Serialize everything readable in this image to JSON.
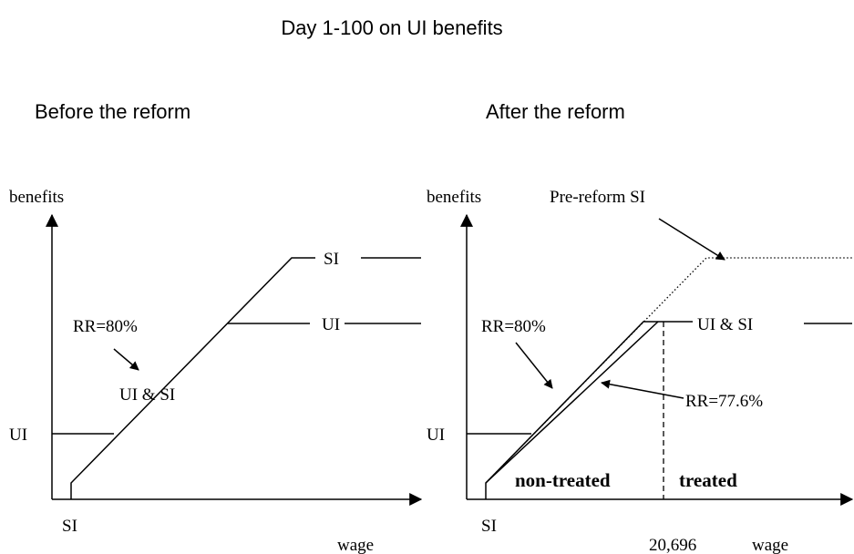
{
  "title": "Day 1-100 on UI benefits",
  "panels": [
    {
      "heading": "Before the reform",
      "y_label": "benefits",
      "x_label": "wage",
      "labels": {
        "si_top": "SI",
        "ui_top": "UI",
        "rr": "RR=80%",
        "ui_si": "UI & SI",
        "ui_axis": "UI",
        "si_axis": "SI"
      }
    },
    {
      "heading": "After the reform",
      "y_label": "benefits",
      "x_label": "wage",
      "labels": {
        "pre_reform": "Pre-reform SI",
        "rr": "RR=80%",
        "ui_si": "UI & SI",
        "rr_new": "RR=77.6%",
        "ui_axis": "UI",
        "non_treated": "non-treated",
        "treated": "treated",
        "si_axis": "SI",
        "threshold": "20,696"
      }
    }
  ]
}
